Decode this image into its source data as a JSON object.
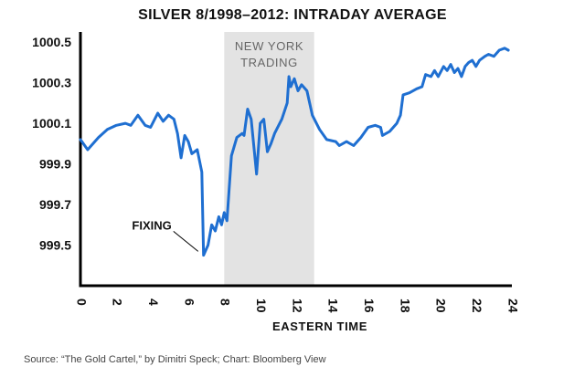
{
  "chart_data": {
    "type": "line",
    "title": "SILVER 8/1998–2012: INTRADAY AVERAGE",
    "xlabel": "EASTERN TIME",
    "ylabel": "",
    "xlim": [
      0,
      24
    ],
    "ylim": [
      999.3,
      1000.55
    ],
    "x_ticks": [
      0,
      2,
      4,
      6,
      8,
      10,
      12,
      14,
      16,
      18,
      20,
      22,
      24
    ],
    "y_ticks": [
      999.5,
      999.7,
      999.9,
      1000.1,
      1000.3,
      1000.5
    ],
    "y_tick_labels": [
      "999.5",
      "999.7",
      "999.9",
      "1000.1",
      "1000.3",
      "1000.5"
    ],
    "grid": false,
    "line_color": "#1f6fd1",
    "shaded_region": {
      "x_start": 8,
      "x_end": 13,
      "label": "NEW YORK TRADING",
      "color": "#e3e3e3"
    },
    "annotations": [
      {
        "text": "FIXING",
        "x": 6.7,
        "y": 999.46
      }
    ],
    "series": [
      {
        "name": "",
        "points": [
          [
            0,
            1000.02
          ],
          [
            0.4,
            999.97
          ],
          [
            1.0,
            1000.03
          ],
          [
            1.5,
            1000.07
          ],
          [
            2.0,
            1000.09
          ],
          [
            2.5,
            1000.1
          ],
          [
            2.8,
            1000.09
          ],
          [
            3.2,
            1000.14
          ],
          [
            3.6,
            1000.09
          ],
          [
            3.9,
            1000.08
          ],
          [
            4.3,
            1000.15
          ],
          [
            4.6,
            1000.11
          ],
          [
            4.9,
            1000.14
          ],
          [
            5.2,
            1000.12
          ],
          [
            5.4,
            1000.05
          ],
          [
            5.6,
            999.93
          ],
          [
            5.8,
            1000.04
          ],
          [
            6.0,
            1000.01
          ],
          [
            6.2,
            999.95
          ],
          [
            6.5,
            999.97
          ],
          [
            6.75,
            999.86
          ],
          [
            6.85,
            999.45
          ],
          [
            7.1,
            999.5
          ],
          [
            7.3,
            999.6
          ],
          [
            7.5,
            999.57
          ],
          [
            7.7,
            999.64
          ],
          [
            7.85,
            999.6
          ],
          [
            8.0,
            999.66
          ],
          [
            8.15,
            999.62
          ],
          [
            8.4,
            999.94
          ],
          [
            8.7,
            1000.03
          ],
          [
            9.0,
            1000.05
          ],
          [
            9.1,
            1000.04
          ],
          [
            9.3,
            1000.17
          ],
          [
            9.5,
            1000.12
          ],
          [
            9.8,
            999.85
          ],
          [
            10.0,
            1000.1
          ],
          [
            10.2,
            1000.12
          ],
          [
            10.4,
            999.96
          ],
          [
            10.6,
            1000.0
          ],
          [
            10.8,
            1000.05
          ],
          [
            11.2,
            1000.12
          ],
          [
            11.5,
            1000.2
          ],
          [
            11.6,
            1000.33
          ],
          [
            11.7,
            1000.28
          ],
          [
            11.9,
            1000.32
          ],
          [
            12.1,
            1000.26
          ],
          [
            12.3,
            1000.29
          ],
          [
            12.6,
            1000.26
          ],
          [
            12.9,
            1000.14
          ],
          [
            13.3,
            1000.07
          ],
          [
            13.7,
            1000.02
          ],
          [
            14.2,
            1000.01
          ],
          [
            14.4,
            999.99
          ],
          [
            14.8,
            1000.01
          ],
          [
            15.2,
            999.99
          ],
          [
            15.6,
            1000.03
          ],
          [
            16.0,
            1000.08
          ],
          [
            16.4,
            1000.09
          ],
          [
            16.7,
            1000.08
          ],
          [
            16.8,
            1000.04
          ],
          [
            17.2,
            1000.06
          ],
          [
            17.6,
            1000.1
          ],
          [
            17.8,
            1000.14
          ],
          [
            17.95,
            1000.24
          ],
          [
            18.3,
            1000.25
          ],
          [
            18.7,
            1000.27
          ],
          [
            19.0,
            1000.28
          ],
          [
            19.2,
            1000.34
          ],
          [
            19.5,
            1000.33
          ],
          [
            19.7,
            1000.36
          ],
          [
            19.9,
            1000.33
          ],
          [
            20.2,
            1000.38
          ],
          [
            20.4,
            1000.36
          ],
          [
            20.6,
            1000.39
          ],
          [
            20.8,
            1000.35
          ],
          [
            21.0,
            1000.37
          ],
          [
            21.2,
            1000.33
          ],
          [
            21.4,
            1000.38
          ],
          [
            21.6,
            1000.4
          ],
          [
            21.8,
            1000.41
          ],
          [
            22.0,
            1000.38
          ],
          [
            22.2,
            1000.41
          ],
          [
            22.5,
            1000.43
          ],
          [
            22.7,
            1000.44
          ],
          [
            23.0,
            1000.43
          ],
          [
            23.3,
            1000.46
          ],
          [
            23.6,
            1000.47
          ],
          [
            23.8,
            1000.46
          ]
        ]
      }
    ]
  },
  "source": "Source: “The Gold Cartel,” by Dimitri Speck; Chart: Bloomberg View"
}
